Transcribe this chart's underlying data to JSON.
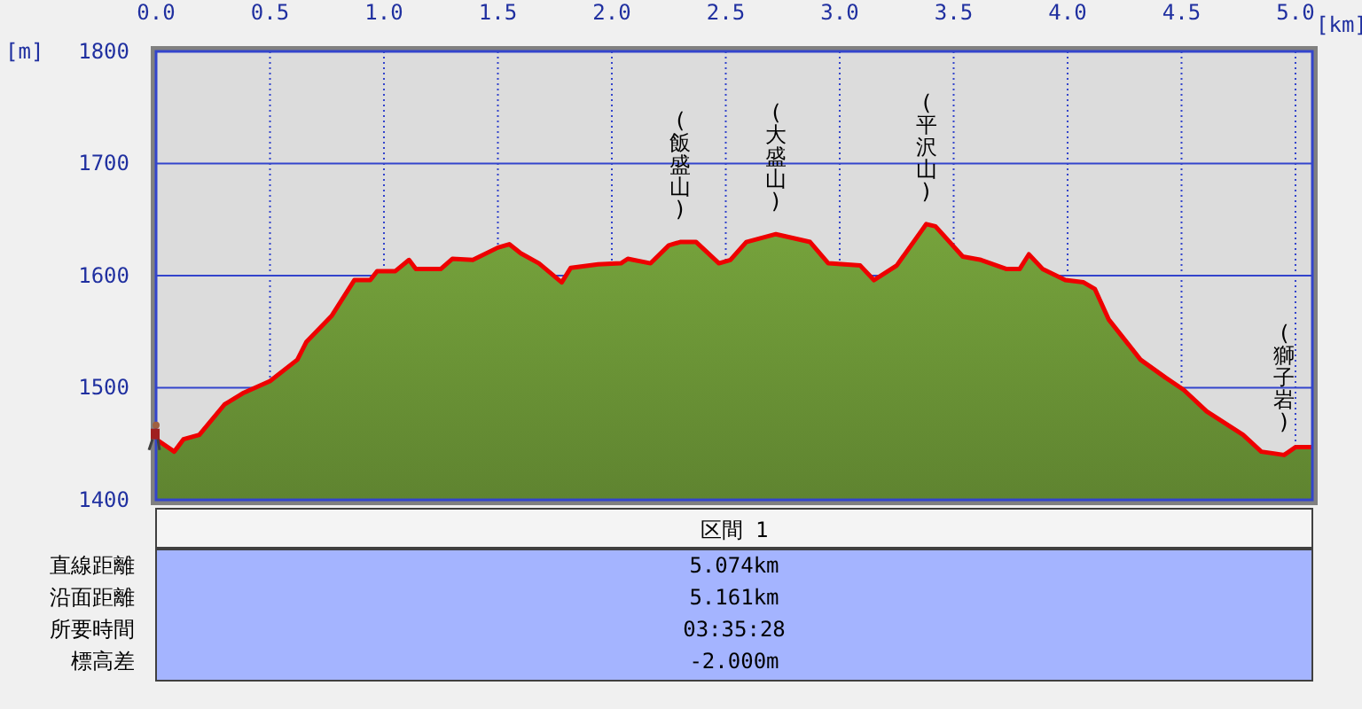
{
  "chart_data": {
    "type": "area",
    "xlabel": "[km]",
    "ylabel": "[m]",
    "x": [
      0,
      0.08,
      0.12,
      0.19,
      0.3,
      0.38,
      0.5,
      0.62,
      0.66,
      0.77,
      0.87,
      0.94,
      0.97,
      1.05,
      1.11,
      1.14,
      1.25,
      1.3,
      1.39,
      1.5,
      1.55,
      1.6,
      1.68,
      1.78,
      1.82,
      1.94,
      2.04,
      2.07,
      2.17,
      2.25,
      2.3,
      2.37,
      2.47,
      2.52,
      2.59,
      2.72,
      2.87,
      2.95,
      3.09,
      3.15,
      3.25,
      3.38,
      3.42,
      3.54,
      3.62,
      3.73,
      3.79,
      3.83,
      3.89,
      3.99,
      4.07,
      4.12,
      4.18,
      4.32,
      4.43,
      4.51,
      4.61,
      4.77,
      4.85,
      4.95,
      5.0,
      5.074
    ],
    "series": [
      {
        "color": "#76a33c",
        "values": [
          1454,
          1443,
          1454,
          1458,
          1485,
          1495,
          1506,
          1525,
          1541,
          1564,
          1596,
          1596,
          1604,
          1604,
          1614,
          1606,
          1606,
          1615,
          1614,
          1625,
          1628,
          1620,
          1611,
          1594,
          1607,
          1610,
          1611,
          1615,
          1611,
          1627,
          1630,
          1630,
          1611,
          1614,
          1630,
          1637,
          1630,
          1611,
          1609,
          1596,
          1609,
          1646,
          1644,
          1617,
          1614,
          1606,
          1606,
          1619,
          1606,
          1596,
          1594,
          1588,
          1561,
          1525,
          1509,
          1498,
          1479,
          1458,
          1443,
          1440,
          1447,
          1447
        ]
      }
    ],
    "xlim": [
      0,
      5.074
    ],
    "xticks": [
      {
        "value": 0,
        "label": "0.0"
      },
      {
        "value": 0.5,
        "label": "0.5"
      },
      {
        "value": 1,
        "label": "1.0"
      },
      {
        "value": 1.5,
        "label": "1.5"
      },
      {
        "value": 2,
        "label": "2.0"
      },
      {
        "value": 2.5,
        "label": "2.5"
      },
      {
        "value": 3,
        "label": "3.0"
      },
      {
        "value": 3.5,
        "label": "3.5"
      },
      {
        "value": 4,
        "label": "4.0"
      },
      {
        "value": 4.5,
        "label": "4.5"
      },
      {
        "value": 5,
        "label": "5.0"
      }
    ],
    "ylim": [
      1400,
      1800
    ],
    "yticks": [
      1400,
      1500,
      1600,
      1700,
      1800
    ],
    "grid": true,
    "annotations": [
      {
        "text": "(飯盛山)",
        "x": 2.3,
        "y": 1630
      },
      {
        "text": "(大盛山)",
        "x": 2.72,
        "y": 1637
      },
      {
        "text": "(平沢山)",
        "x": 3.38,
        "y": 1646
      },
      {
        "text": "(獅子岩)",
        "x": 4.95,
        "y": 1440
      },
      "区間 1",
      "直線距離",
      "5.074km",
      "沿面距離",
      "5.161km",
      "所要時間",
      "03:35:28",
      "標高差",
      "-2.000m"
    ]
  }
}
